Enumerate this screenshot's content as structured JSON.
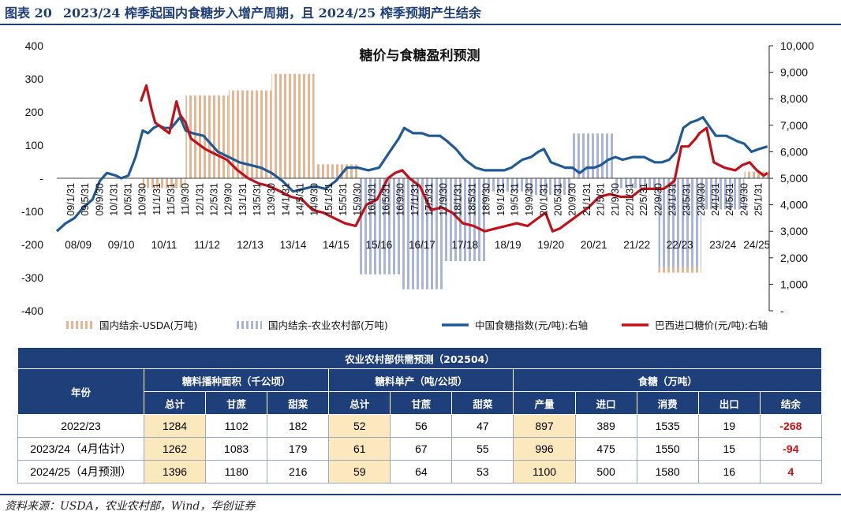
{
  "figure": {
    "number": "图表 20",
    "title": "2023/24 榨季起国内食糖步入增产周期，且 2024/25 榨季预期产生结余",
    "source": "资料来源：USDA，农业农村部，Wind，华创证券"
  },
  "colors": {
    "accent": "#1f3f7a",
    "usda_bar": "#e8b592",
    "moa_bar": "#a9b4d6",
    "china_line": "#1f5a96",
    "brazil_line": "#c0111a",
    "highlight": "#fbe8bd",
    "negative": "#d01010"
  },
  "chart_data": {
    "type": "bar+line",
    "title": "糖价与食糖盈利预测",
    "left_axis": {
      "ylim": [
        -400,
        400
      ],
      "ticks": [
        "400",
        "300",
        "200",
        "100",
        "-",
        "-100",
        "-200",
        "-300",
        "-400"
      ]
    },
    "right_axis": {
      "ylim": [
        0,
        10000
      ],
      "ticks": [
        "10,000",
        "9,000",
        "8,000",
        "7,000",
        "6,000",
        "5,000",
        "4,000",
        "3,000",
        "2,000",
        "1,000",
        "-"
      ]
    },
    "x_range": [
      "2008-10-01",
      "2025-04-30"
    ],
    "date_ticks": [
      "09/1/31",
      "09/5/31",
      "09/9/30",
      "10/1/31",
      "10/5/31",
      "10/9/30",
      "11/1/31",
      "11/5/31",
      "11/9/30",
      "12/1/31",
      "12/5/31",
      "12/9/30",
      "13/1/31",
      "13/5/31",
      "13/9/30",
      "14/1/31",
      "14/5/31",
      "14/9/30",
      "15/1/31",
      "15/5/31",
      "15/9/30",
      "16/1/31",
      "16/5/31",
      "16/9/30",
      "17/1/31",
      "17/5/31",
      "17/9/30",
      "18/1/31",
      "18/5/31",
      "18/9/30",
      "19/1/31",
      "19/5/31",
      "19/9/30",
      "20/1/31",
      "20/5/31",
      "20/9/30",
      "21/1/31",
      "21/5/31",
      "21/9/30",
      "22/1/31",
      "22/5/31",
      "22/9/30",
      "23/1/31",
      "23/5/31",
      "23/9/30",
      "24/1/31",
      "24/5/31",
      "24/9/30",
      "25/1/31"
    ],
    "season_labels": [
      "08/09",
      "09/10",
      "10/11",
      "11/12",
      "12/13",
      "13/14",
      "14/15",
      "15/16",
      "16/17",
      "17/18",
      "18/19",
      "19/20",
      "20/21",
      "21/22",
      "22/23",
      "23/24",
      "24/25"
    ],
    "series": [
      {
        "name": "国内结余-USDA(万吨)",
        "kind": "bar",
        "axis": "left",
        "periods": [
          {
            "start": "2010-10-01",
            "end": "2011-09-30",
            "value": -30
          },
          {
            "start": "2011-10-01",
            "end": "2012-09-30",
            "value": 250
          },
          {
            "start": "2012-10-01",
            "end": "2013-09-30",
            "value": 265
          },
          {
            "start": "2013-10-01",
            "end": "2014-09-30",
            "value": 315
          },
          {
            "start": "2014-10-01",
            "end": "2015-09-30",
            "value": 42
          },
          {
            "start": "2022-10-01",
            "end": "2023-09-30",
            "value": -285
          },
          {
            "start": "2024-10-01",
            "end": "2025-04-30",
            "value": 20
          }
        ]
      },
      {
        "name": "国内结余-农业农村部(万吨)",
        "kind": "bar",
        "axis": "left",
        "periods": [
          {
            "start": "2015-10-01",
            "end": "2016-09-30",
            "value": -290
          },
          {
            "start": "2016-10-01",
            "end": "2017-09-30",
            "value": -335
          },
          {
            "start": "2017-10-01",
            "end": "2018-09-30",
            "value": -250
          },
          {
            "start": "2018-10-01",
            "end": "2019-09-30",
            "value": -40
          },
          {
            "start": "2019-10-01",
            "end": "2020-09-30",
            "value": -50
          },
          {
            "start": "2020-10-01",
            "end": "2021-09-30",
            "value": 135
          },
          {
            "start": "2021-10-01",
            "end": "2022-09-30",
            "value": -30
          },
          {
            "start": "2022-10-01",
            "end": "2023-09-30",
            "value": -268
          },
          {
            "start": "2023-10-01",
            "end": "2024-09-30",
            "value": -94
          },
          {
            "start": "2024-10-01",
            "end": "2025-04-30",
            "value": 4
          }
        ]
      },
      {
        "name": "中国食糖指数(元/吨):右轴",
        "kind": "line",
        "axis": "right",
        "points": [
          [
            "2008-10-01",
            3000
          ],
          [
            "2008-12-15",
            3300
          ],
          [
            "2009-03-01",
            3500
          ],
          [
            "2009-05-15",
            3900
          ],
          [
            "2009-08-01",
            4200
          ],
          [
            "2009-10-01",
            4900
          ],
          [
            "2009-12-01",
            5200
          ],
          [
            "2010-02-15",
            5100
          ],
          [
            "2010-04-01",
            5000
          ],
          [
            "2010-06-01",
            5100
          ],
          [
            "2010-08-01",
            5800
          ],
          [
            "2010-10-01",
            6800
          ],
          [
            "2010-11-15",
            6700
          ],
          [
            "2011-01-01",
            6900
          ],
          [
            "2011-02-15",
            7000
          ],
          [
            "2011-04-01",
            6900
          ],
          [
            "2011-06-01",
            6900
          ],
          [
            "2011-08-15",
            7300
          ],
          [
            "2011-10-01",
            6800
          ],
          [
            "2011-12-01",
            6700
          ],
          [
            "2012-03-01",
            6600
          ],
          [
            "2012-05-01",
            6300
          ],
          [
            "2012-07-01",
            6000
          ],
          [
            "2012-10-01",
            5800
          ],
          [
            "2013-01-01",
            5600
          ],
          [
            "2013-04-01",
            5500
          ],
          [
            "2013-07-01",
            5400
          ],
          [
            "2013-10-01",
            5200
          ],
          [
            "2014-01-01",
            4900
          ],
          [
            "2014-04-01",
            4500
          ],
          [
            "2014-07-01",
            4600
          ],
          [
            "2014-10-01",
            4700
          ],
          [
            "2015-01-01",
            4600
          ],
          [
            "2015-04-01",
            4900
          ],
          [
            "2015-07-01",
            5400
          ],
          [
            "2015-10-01",
            5400
          ],
          [
            "2016-01-01",
            5300
          ],
          [
            "2016-04-01",
            5400
          ],
          [
            "2016-07-01",
            6000
          ],
          [
            "2016-09-15",
            6500
          ],
          [
            "2016-11-01",
            6900
          ],
          [
            "2017-01-15",
            6700
          ],
          [
            "2017-04-01",
            6700
          ],
          [
            "2017-06-01",
            6600
          ],
          [
            "2017-09-01",
            6600
          ],
          [
            "2017-11-01",
            6400
          ],
          [
            "2018-01-15",
            6100
          ],
          [
            "2018-04-01",
            5700
          ],
          [
            "2018-07-01",
            5400
          ],
          [
            "2018-09-15",
            5300
          ],
          [
            "2018-12-01",
            5300
          ],
          [
            "2019-03-01",
            5300
          ],
          [
            "2019-05-01",
            5400
          ],
          [
            "2019-08-01",
            5700
          ],
          [
            "2019-10-15",
            5800
          ],
          [
            "2019-12-15",
            6000
          ],
          [
            "2020-02-01",
            6100
          ],
          [
            "2020-04-01",
            5600
          ],
          [
            "2020-06-01",
            5500
          ],
          [
            "2020-08-01",
            5400
          ],
          [
            "2020-10-01",
            5400
          ],
          [
            "2020-12-01",
            5200
          ],
          [
            "2021-02-01",
            5400
          ],
          [
            "2021-04-01",
            5400
          ],
          [
            "2021-06-01",
            5500
          ],
          [
            "2021-08-01",
            5700
          ],
          [
            "2021-10-01",
            5800
          ],
          [
            "2021-12-01",
            5700
          ],
          [
            "2022-03-01",
            5800
          ],
          [
            "2022-06-01",
            5800
          ],
          [
            "2022-09-01",
            5600
          ],
          [
            "2022-11-01",
            5600
          ],
          [
            "2023-01-01",
            5700
          ],
          [
            "2023-03-01",
            6000
          ],
          [
            "2023-05-01",
            6900
          ],
          [
            "2023-07-01",
            7100
          ],
          [
            "2023-09-01",
            7200
          ],
          [
            "2023-10-15",
            7300
          ],
          [
            "2023-12-01",
            7000
          ],
          [
            "2024-02-01",
            6600
          ],
          [
            "2024-05-01",
            6600
          ],
          [
            "2024-08-01",
            6400
          ],
          [
            "2024-10-01",
            6300
          ],
          [
            "2024-12-01",
            6000
          ],
          [
            "2025-02-01",
            6100
          ],
          [
            "2025-04-15",
            6200
          ]
        ]
      },
      {
        "name": "巴西进口糖价(元/吨):右轴",
        "kind": "line",
        "axis": "right",
        "points": [
          [
            "2010-09-15",
            7900
          ],
          [
            "2010-11-01",
            8500
          ],
          [
            "2010-12-15",
            7600
          ],
          [
            "2011-01-15",
            7100
          ],
          [
            "2011-03-15",
            6900
          ],
          [
            "2011-05-15",
            6700
          ],
          [
            "2011-07-15",
            7900
          ],
          [
            "2011-08-15",
            7400
          ],
          [
            "2011-09-30",
            7100
          ],
          [
            "2011-11-15",
            6500
          ],
          [
            "2012-01-15",
            6300
          ],
          [
            "2012-03-15",
            6100
          ],
          [
            "2012-06-15",
            5900
          ],
          [
            "2012-09-15",
            5700
          ],
          [
            "2012-12-15",
            5300
          ],
          [
            "2013-03-15",
            5000
          ],
          [
            "2013-06-15",
            4800
          ],
          [
            "2013-09-15",
            4700
          ],
          [
            "2013-12-15",
            4500
          ],
          [
            "2014-03-15",
            4300
          ],
          [
            "2014-06-15",
            4200
          ],
          [
            "2014-09-15",
            3800
          ],
          [
            "2014-12-15",
            3700
          ],
          [
            "2015-03-15",
            3500
          ],
          [
            "2015-06-15",
            3300
          ],
          [
            "2015-09-15",
            3200
          ],
          [
            "2015-12-15",
            4000
          ],
          [
            "2016-03-15",
            4200
          ],
          [
            "2016-06-15",
            5000
          ],
          [
            "2016-08-15",
            5200
          ],
          [
            "2016-10-15",
            5300
          ],
          [
            "2016-12-15",
            5000
          ],
          [
            "2017-03-15",
            4700
          ],
          [
            "2017-06-15",
            3800
          ],
          [
            "2017-09-15",
            3900
          ],
          [
            "2017-12-15",
            3700
          ],
          [
            "2018-03-15",
            3300
          ],
          [
            "2018-06-15",
            3200
          ],
          [
            "2018-09-15",
            3000
          ],
          [
            "2018-12-15",
            3100
          ],
          [
            "2019-03-15",
            3200
          ],
          [
            "2019-06-15",
            3300
          ],
          [
            "2019-09-15",
            3200
          ],
          [
            "2019-12-15",
            3500
          ],
          [
            "2020-02-15",
            3700
          ],
          [
            "2020-04-15",
            3000
          ],
          [
            "2020-06-15",
            3100
          ],
          [
            "2020-08-15",
            3300
          ],
          [
            "2020-11-15",
            3600
          ],
          [
            "2021-02-15",
            3900
          ],
          [
            "2021-05-15",
            4300
          ],
          [
            "2021-08-15",
            4400
          ],
          [
            "2021-11-15",
            4300
          ],
          [
            "2022-02-15",
            4300
          ],
          [
            "2022-05-15",
            4600
          ],
          [
            "2022-08-15",
            4600
          ],
          [
            "2022-11-15",
            4600
          ],
          [
            "2023-02-15",
            4900
          ],
          [
            "2023-04-15",
            6200
          ],
          [
            "2023-06-15",
            6200
          ],
          [
            "2023-08-15",
            6500
          ],
          [
            "2023-09-15",
            6700
          ],
          [
            "2023-11-15",
            6900
          ],
          [
            "2024-01-15",
            5600
          ],
          [
            "2024-04-15",
            5400
          ],
          [
            "2024-07-15",
            5300
          ],
          [
            "2024-09-15",
            5500
          ],
          [
            "2024-11-15",
            5600
          ],
          [
            "2025-01-15",
            5300
          ],
          [
            "2025-03-15",
            5100
          ],
          [
            "2025-04-15",
            5200
          ]
        ]
      }
    ]
  },
  "table": {
    "title": "农业农村部供需预测（202504）",
    "year_header": "年份",
    "groups": [
      "糖料播种面积（千公顷）",
      "糖料单产（吨/公顷）",
      "食糖（万吨）"
    ],
    "subheaders": [
      "总计",
      "甘蔗",
      "甜菜",
      "总计",
      "甘蔗",
      "甜菜",
      "产量",
      "进口",
      "消费",
      "出口",
      "结余"
    ],
    "rows": [
      {
        "year": "2022/23",
        "values": [
          "1284",
          "1102",
          "182",
          "52",
          "56",
          "47",
          "897",
          "389",
          "1535",
          "19",
          "-268"
        ]
      },
      {
        "year": "2023/24（4月估计）",
        "values": [
          "1262",
          "1083",
          "179",
          "61",
          "67",
          "55",
          "996",
          "475",
          "1550",
          "15",
          "-94"
        ]
      },
      {
        "year": "2024/25（4月预测）",
        "values": [
          "1396",
          "1180",
          "216",
          "59",
          "64",
          "53",
          "1100",
          "500",
          "1580",
          "16",
          "4"
        ]
      }
    ]
  }
}
